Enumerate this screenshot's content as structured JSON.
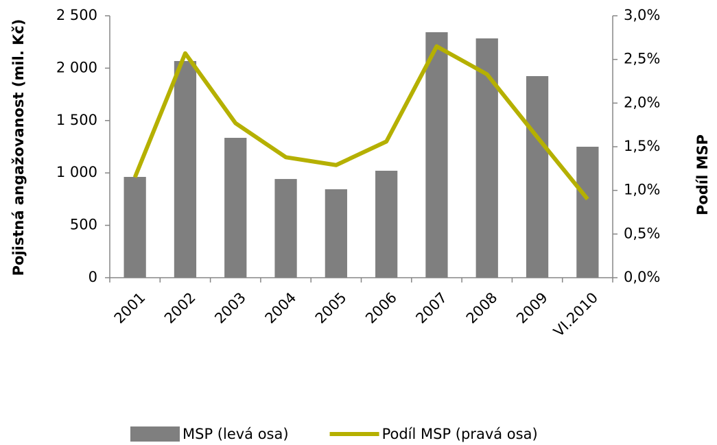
{
  "chart_data": {
    "type": "combo",
    "y_label": "Pojistná angažovanost  (mil. Kč)",
    "y2_label": "Podíl MSP",
    "categories": [
      "2001",
      "2002",
      "2003",
      "2004",
      "2005",
      "2006",
      "2007",
      "2008",
      "2009",
      "VI.2010"
    ],
    "series": [
      {
        "name": "MSP (levá osa)",
        "type": "bar",
        "color": "#7f7f7f",
        "values": [
          962,
          2068,
          1335,
          942,
          844,
          1021,
          2343,
          2284,
          1924,
          1250
        ]
      },
      {
        "name": "Podíl MSP (pravá osa)",
        "type": "line",
        "axis": "y2",
        "color": "#b5b000",
        "values": [
          1.15,
          2.57,
          1.77,
          1.38,
          1.29,
          1.56,
          2.65,
          2.33,
          1.61,
          0.9
        ]
      }
    ],
    "ylim": [
      0,
      2500
    ],
    "yticks": [
      0,
      500,
      {
        "value": 1000,
        "label": "1 000"
      },
      {
        "value": 1500,
        "label": "1 500"
      },
      {
        "value": 2000,
        "label": "2 000"
      },
      {
        "value": 2500,
        "label": "2 500"
      }
    ],
    "y2lim": [
      0,
      3
    ],
    "y2ticks": [
      {
        "value": 0,
        "label": "0,0%"
      },
      {
        "value": 0.5,
        "label": "0,5%"
      },
      {
        "value": 1,
        "label": "1,0%"
      },
      {
        "value": 1.5,
        "label": "1,5%"
      },
      {
        "value": 2,
        "label": "2,0%"
      },
      {
        "value": 2.5,
        "label": "2,5%"
      },
      {
        "value": 3,
        "label": "3,0%"
      }
    ],
    "grid": false,
    "legend": "bottom"
  }
}
